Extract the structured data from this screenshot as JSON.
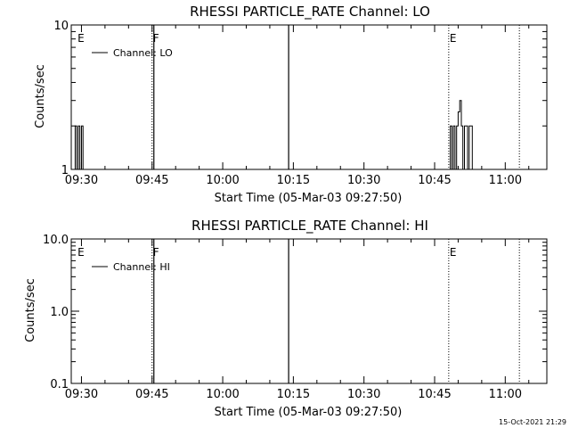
{
  "colors": {
    "background": "#ffffff",
    "ink": "#000000"
  },
  "chart_data": [
    {
      "type": "line",
      "title": "RHESSI PARTICLE_RATE Channel: LO",
      "xlabel": "Start Time (05-Mar-03 09:27:50)",
      "ylabel": "Counts/sec",
      "yscale": "log",
      "ylim": [
        1,
        10
      ],
      "y_ticks": [
        "1",
        "10"
      ],
      "x_ticks": [
        "09:30",
        "09:45",
        "10:00",
        "10:15",
        "10:30",
        "10:45",
        "11:00"
      ],
      "legend": {
        "label": "Channel: LO",
        "position": "top-left"
      },
      "markers": [
        {
          "time": "09:29",
          "label": "E",
          "style": "none"
        },
        {
          "time": "09:45",
          "label": "F",
          "style": "dotted+solid"
        },
        {
          "time": "10:14",
          "label": "",
          "style": "solid"
        },
        {
          "time": "10:48",
          "label": "E",
          "style": "dotted"
        },
        {
          "time": "11:03",
          "label": "",
          "style": "dotted"
        }
      ],
      "series": [
        {
          "name": "Channel: LO",
          "points": [
            [
              "09:28:40",
              1
            ],
            [
              "09:28:40",
              2
            ],
            [
              "09:29:00",
              2
            ],
            [
              "09:29:00",
              1
            ],
            [
              "09:29:20",
              1
            ],
            [
              "09:29:20",
              2
            ],
            [
              "09:29:40",
              2
            ],
            [
              "09:29:40",
              1
            ],
            [
              "09:30:00",
              1
            ],
            [
              "09:30:00",
              2
            ],
            [
              "09:30:20",
              2
            ],
            [
              "09:30:20",
              1
            ],
            [
              "10:48:20",
              1
            ],
            [
              "10:48:20",
              2
            ],
            [
              "10:48:40",
              2
            ],
            [
              "10:48:40",
              1
            ],
            [
              "10:49:00",
              1
            ],
            [
              "10:49:00",
              2
            ],
            [
              "10:49:20",
              2
            ],
            [
              "10:49:20",
              1
            ],
            [
              "10:49:40",
              1
            ],
            [
              "10:49:40",
              2
            ],
            [
              "10:50:00",
              2
            ],
            [
              "10:50:00",
              2.5
            ],
            [
              "10:50:20",
              2.5
            ],
            [
              "10:50:20",
              3
            ],
            [
              "10:50:40",
              3
            ],
            [
              "10:50:40",
              2
            ],
            [
              "10:51:00",
              2
            ],
            [
              "10:51:00",
              1
            ],
            [
              "10:51:20",
              1
            ],
            [
              "10:51:20",
              2
            ],
            [
              "10:52:00",
              2
            ],
            [
              "10:52:00",
              1
            ],
            [
              "10:52:20",
              1
            ],
            [
              "10:52:20",
              2
            ],
            [
              "10:53:00",
              2
            ],
            [
              "10:53:00",
              1
            ]
          ]
        }
      ]
    },
    {
      "type": "line",
      "title": "RHESSI PARTICLE_RATE Channel: HI",
      "xlabel": "Start Time (05-Mar-03 09:27:50)",
      "ylabel": "Counts/sec",
      "yscale": "log",
      "ylim": [
        0.1,
        10
      ],
      "y_ticks": [
        "0.1",
        "1.0",
        "10.0"
      ],
      "x_ticks": [
        "09:30",
        "09:45",
        "10:00",
        "10:15",
        "10:30",
        "10:45",
        "11:00"
      ],
      "legend": {
        "label": "Channel: HI",
        "position": "top-left"
      },
      "markers": [
        {
          "time": "09:29",
          "label": "E",
          "style": "none"
        },
        {
          "time": "09:45",
          "label": "F",
          "style": "dotted+solid"
        },
        {
          "time": "10:14",
          "label": "",
          "style": "solid"
        },
        {
          "time": "10:48",
          "label": "E",
          "style": "dotted"
        },
        {
          "time": "11:03",
          "label": "",
          "style": "dotted"
        }
      ],
      "series": [
        {
          "name": "Channel: HI",
          "points": []
        }
      ]
    }
  ],
  "footer": {
    "timestamp": "15-Oct-2021 21:29"
  }
}
